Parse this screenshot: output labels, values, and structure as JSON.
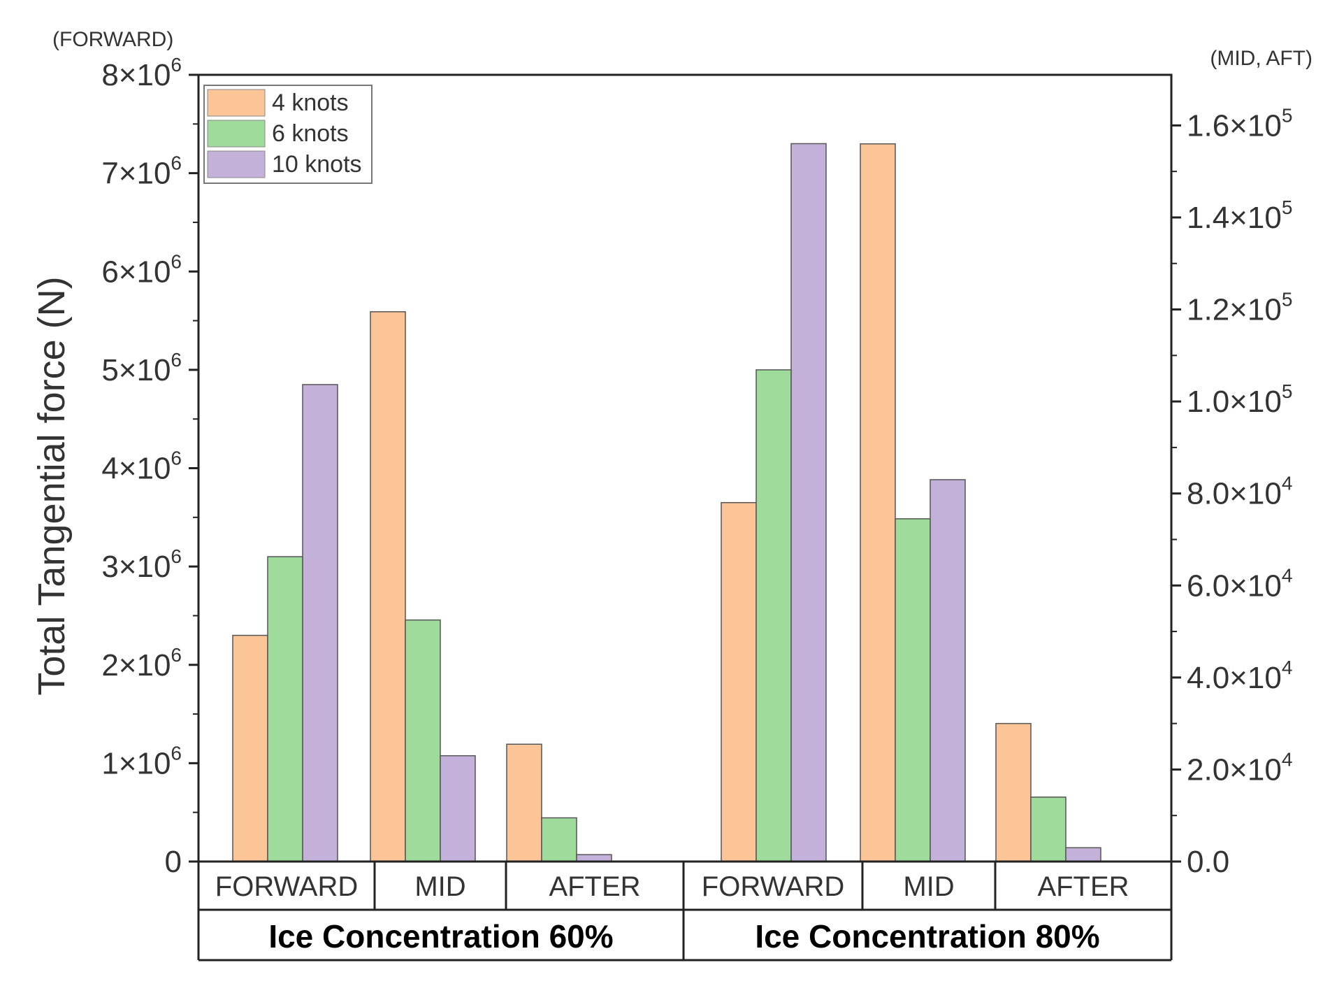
{
  "chart_data": {
    "type": "bar",
    "ylabel": "Total Tangential force (N)",
    "left_axis_note": "(FORWARD)",
    "right_axis_note": "(MID, AFT)",
    "legend_position": "top-left",
    "grid": false,
    "series": [
      {
        "name": "4 knots",
        "color": "#fbc597"
      },
      {
        "name": "6 knots",
        "color": "#9fdc9c"
      },
      {
        "name": "10 knots",
        "color": "#c3b1d9"
      }
    ],
    "groups": [
      {
        "label": "Ice Concentration 60%",
        "sections": [
          {
            "label": "FORWARD",
            "axis": "left",
            "values": [
              2300000,
              3100000,
              4850000
            ]
          },
          {
            "label": "MID",
            "axis": "right",
            "values": [
              119500,
              52500,
              23000
            ]
          },
          {
            "label": "AFTER",
            "axis": "right",
            "values": [
              25500,
              9500,
              1500
            ]
          }
        ]
      },
      {
        "label": "Ice Concentration 80%",
        "sections": [
          {
            "label": "FORWARD",
            "axis": "left",
            "values": [
              3650000,
              5000000,
              7300000
            ]
          },
          {
            "label": "MID",
            "axis": "right",
            "values": [
              156000,
              74500,
              83000
            ]
          },
          {
            "label": "AFTER",
            "axis": "right",
            "values": [
              30000,
              14000,
              3000
            ]
          }
        ]
      }
    ],
    "left_axis": {
      "min": 0,
      "max": 8000000,
      "ticks": [
        {
          "value": 0,
          "base": "0",
          "exp": ""
        },
        {
          "value": 1000000,
          "base": "1×10",
          "exp": "6"
        },
        {
          "value": 2000000,
          "base": "2×10",
          "exp": "6"
        },
        {
          "value": 3000000,
          "base": "3×10",
          "exp": "6"
        },
        {
          "value": 4000000,
          "base": "4×10",
          "exp": "6"
        },
        {
          "value": 5000000,
          "base": "5×10",
          "exp": "6"
        },
        {
          "value": 6000000,
          "base": "6×10",
          "exp": "6"
        },
        {
          "value": 7000000,
          "base": "7×10",
          "exp": "6"
        },
        {
          "value": 8000000,
          "base": "8×10",
          "exp": "6"
        }
      ]
    },
    "right_axis": {
      "min": 0,
      "max": 171000,
      "ticks": [
        {
          "value": 0,
          "base": "0.0",
          "exp": ""
        },
        {
          "value": 20000,
          "base": "2.0×10",
          "exp": "4"
        },
        {
          "value": 40000,
          "base": "4.0×10",
          "exp": "4"
        },
        {
          "value": 60000,
          "base": "6.0×10",
          "exp": "4"
        },
        {
          "value": 80000,
          "base": "8.0×10",
          "exp": "4"
        },
        {
          "value": 100000,
          "base": "1.0×10",
          "exp": "5"
        },
        {
          "value": 120000,
          "base": "1.2×10",
          "exp": "5"
        },
        {
          "value": 140000,
          "base": "1.4×10",
          "exp": "5"
        },
        {
          "value": 160000,
          "base": "1.6×10",
          "exp": "5"
        }
      ]
    }
  }
}
